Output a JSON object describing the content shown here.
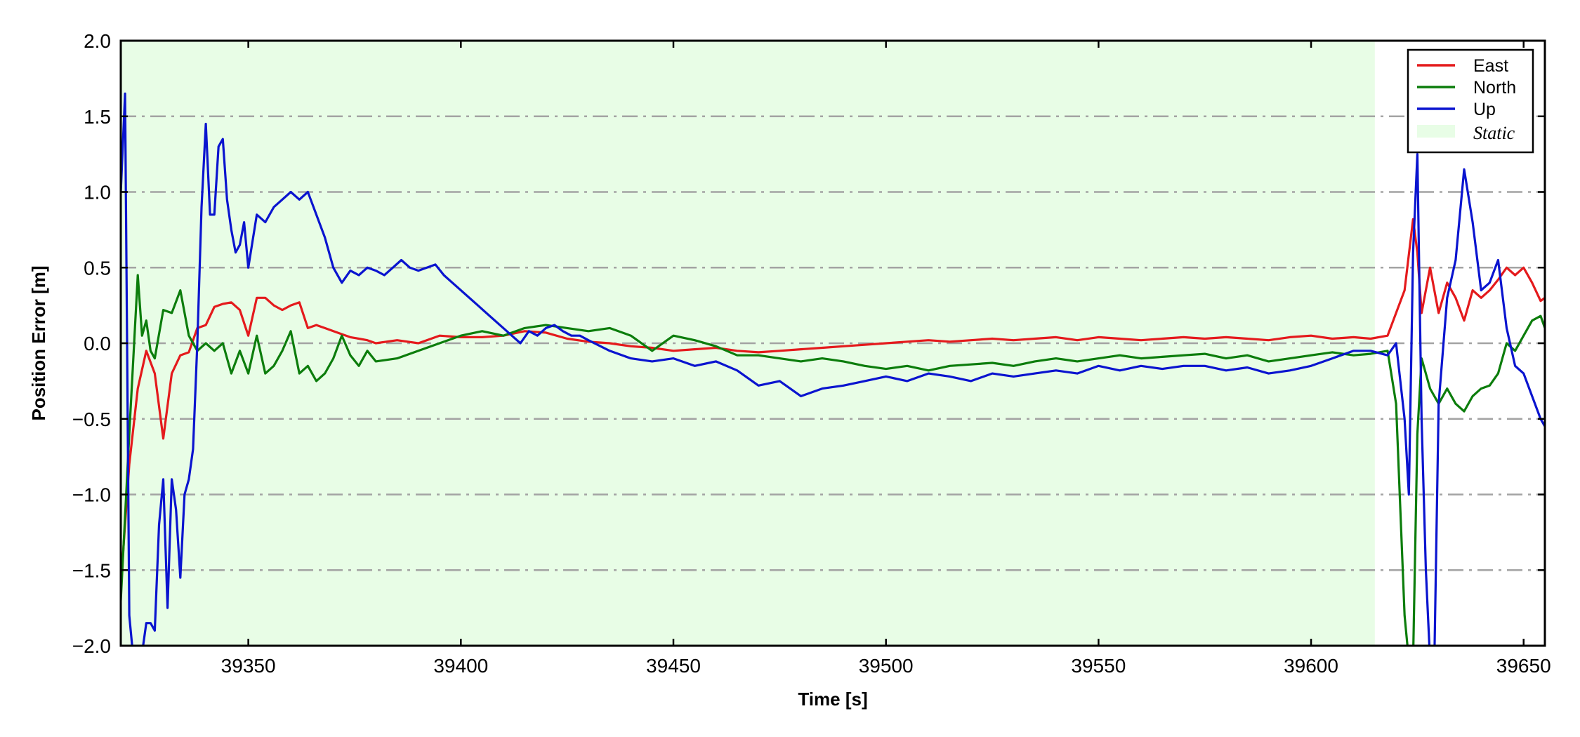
{
  "chart_data": {
    "type": "line",
    "title": "",
    "xlabel": "Time [s]",
    "ylabel": "Position Error [m]",
    "xlim": [
      39320,
      39655
    ],
    "ylim": [
      -2.0,
      2.0
    ],
    "xticks": [
      39350,
      39400,
      39450,
      39500,
      39550,
      39600,
      39650
    ],
    "yticks": [
      -2.0,
      -1.5,
      -1.0,
      -0.5,
      0.0,
      0.5,
      1.0,
      1.5,
      2.0
    ],
    "xtick_labels": [
      "39350",
      "39400",
      "39450",
      "39500",
      "39550",
      "39600",
      "39650"
    ],
    "ytick_labels": [
      "−2.0",
      "−1.5",
      "−1.0",
      "−0.5",
      "0.0",
      "0.5",
      "1.0",
      "1.5",
      "2.0"
    ],
    "grid": "horizontal dash-dot",
    "legend_position": "top-right",
    "static_region": {
      "label": "Static",
      "x_start": 39320,
      "x_end": 39615,
      "color": "#e8fde6"
    },
    "series": [
      {
        "name": "East",
        "color": "#e41a1c",
        "x": [
          39320,
          39322,
          39324,
          39326,
          39328,
          39330,
          39332,
          39334,
          39336,
          39338,
          39340,
          39342,
          39344,
          39346,
          39348,
          39350,
          39352,
          39354,
          39356,
          39358,
          39360,
          39362,
          39364,
          39366,
          39368,
          39370,
          39372,
          39374,
          39376,
          39378,
          39380,
          39385,
          39390,
          39395,
          39400,
          39405,
          39410,
          39415,
          39420,
          39425,
          39430,
          39435,
          39440,
          39445,
          39450,
          39455,
          39460,
          39465,
          39470,
          39475,
          39480,
          39485,
          39490,
          39495,
          39500,
          39505,
          39510,
          39515,
          39520,
          39525,
          39530,
          39535,
          39540,
          39545,
          39550,
          39555,
          39560,
          39565,
          39570,
          39575,
          39580,
          39585,
          39590,
          39595,
          39600,
          39605,
          39610,
          39614,
          39618,
          39622,
          39624,
          39625,
          39626,
          39628,
          39630,
          39632,
          39634,
          39636,
          39638,
          39640,
          39642,
          39644,
          39646,
          39648,
          39650,
          39652,
          39654,
          39655
        ],
        "y": [
          -1.6,
          -0.8,
          -0.3,
          -0.05,
          -0.2,
          -0.63,
          -0.2,
          -0.08,
          -0.06,
          0.1,
          0.12,
          0.24,
          0.26,
          0.27,
          0.22,
          0.05,
          0.3,
          0.3,
          0.25,
          0.22,
          0.25,
          0.27,
          0.1,
          0.12,
          0.1,
          0.08,
          0.06,
          0.04,
          0.03,
          0.02,
          0.0,
          0.02,
          0.0,
          0.05,
          0.04,
          0.04,
          0.05,
          0.08,
          0.07,
          0.03,
          0.01,
          0.0,
          -0.02,
          -0.03,
          -0.05,
          -0.04,
          -0.03,
          -0.05,
          -0.06,
          -0.05,
          -0.04,
          -0.03,
          -0.02,
          -0.01,
          0.0,
          0.01,
          0.02,
          0.01,
          0.02,
          0.03,
          0.02,
          0.03,
          0.04,
          0.02,
          0.04,
          0.03,
          0.02,
          0.03,
          0.04,
          0.03,
          0.04,
          0.03,
          0.02,
          0.04,
          0.05,
          0.03,
          0.04,
          0.03,
          0.05,
          0.35,
          0.82,
          0.6,
          0.2,
          0.5,
          0.2,
          0.4,
          0.3,
          0.15,
          0.35,
          0.3,
          0.35,
          0.42,
          0.5,
          0.45,
          0.5,
          0.4,
          0.28,
          0.3
        ]
      },
      {
        "name": "North",
        "color": "#0c7d0c",
        "x": [
          39320,
          39322,
          39324,
          39325,
          39326,
          39327,
          39328,
          39330,
          39332,
          39334,
          39336,
          39338,
          39340,
          39342,
          39344,
          39346,
          39348,
          39350,
          39352,
          39354,
          39356,
          39358,
          39360,
          39362,
          39364,
          39366,
          39368,
          39370,
          39372,
          39374,
          39376,
          39378,
          39380,
          39385,
          39390,
          39395,
          39400,
          39405,
          39410,
          39415,
          39420,
          39425,
          39430,
          39435,
          39440,
          39445,
          39450,
          39455,
          39460,
          39465,
          39470,
          39475,
          39480,
          39485,
          39490,
          39495,
          39500,
          39505,
          39510,
          39515,
          39520,
          39525,
          39530,
          39535,
          39540,
          39545,
          39550,
          39555,
          39560,
          39565,
          39570,
          39575,
          39580,
          39585,
          39590,
          39595,
          39600,
          39605,
          39610,
          39614,
          39618,
          39620,
          39622,
          39623,
          39624,
          39625,
          39626,
          39628,
          39630,
          39632,
          39634,
          39636,
          39638,
          39640,
          39642,
          39644,
          39646,
          39648,
          39650,
          39652,
          39654,
          39655
        ],
        "y": [
          -1.7,
          -0.6,
          0.45,
          0.05,
          0.15,
          -0.05,
          -0.1,
          0.22,
          0.2,
          0.35,
          0.05,
          -0.05,
          0.0,
          -0.05,
          0.0,
          -0.2,
          -0.05,
          -0.2,
          0.05,
          -0.2,
          -0.15,
          -0.05,
          0.08,
          -0.2,
          -0.15,
          -0.25,
          -0.2,
          -0.1,
          0.05,
          -0.08,
          -0.15,
          -0.05,
          -0.12,
          -0.1,
          -0.05,
          0.0,
          0.05,
          0.08,
          0.05,
          0.1,
          0.12,
          0.1,
          0.08,
          0.1,
          0.05,
          -0.05,
          0.05,
          0.02,
          -0.02,
          -0.08,
          -0.08,
          -0.1,
          -0.12,
          -0.1,
          -0.12,
          -0.15,
          -0.17,
          -0.15,
          -0.18,
          -0.15,
          -0.14,
          -0.13,
          -0.15,
          -0.12,
          -0.1,
          -0.12,
          -0.1,
          -0.08,
          -0.1,
          -0.09,
          -0.08,
          -0.07,
          -0.1,
          -0.08,
          -0.12,
          -0.1,
          -0.08,
          -0.06,
          -0.08,
          -0.07,
          -0.05,
          -0.4,
          -1.8,
          -2.1,
          -2.1,
          -0.6,
          -0.1,
          -0.3,
          -0.4,
          -0.3,
          -0.4,
          -0.45,
          -0.35,
          -0.3,
          -0.28,
          -0.2,
          0.0,
          -0.05,
          0.05,
          0.15,
          0.18,
          0.1
        ]
      },
      {
        "name": "Up",
        "color": "#0a14cf",
        "x": [
          39320,
          39321,
          39322,
          39323,
          39324,
          39325,
          39326,
          39327,
          39328,
          39329,
          39330,
          39331,
          39332,
          39333,
          39334,
          39335,
          39336,
          39337,
          39338,
          39339,
          39340,
          39341,
          39342,
          39343,
          39344,
          39345,
          39346,
          39347,
          39348,
          39349,
          39350,
          39352,
          39354,
          39356,
          39358,
          39360,
          39362,
          39364,
          39366,
          39368,
          39370,
          39372,
          39374,
          39376,
          39378,
          39380,
          39382,
          39384,
          39386,
          39388,
          39390,
          39392,
          39394,
          39396,
          39398,
          39400,
          39402,
          39404,
          39406,
          39408,
          39410,
          39412,
          39414,
          39416,
          39418,
          39420,
          39422,
          39424,
          39426,
          39428,
          39430,
          39435,
          39440,
          39445,
          39450,
          39455,
          39460,
          39465,
          39470,
          39475,
          39480,
          39485,
          39490,
          39495,
          39500,
          39505,
          39510,
          39515,
          39520,
          39525,
          39530,
          39535,
          39540,
          39545,
          39550,
          39555,
          39560,
          39565,
          39570,
          39575,
          39580,
          39585,
          39590,
          39595,
          39600,
          39605,
          39610,
          39614,
          39618,
          39620,
          39622,
          39623,
          39624,
          39625,
          39626,
          39627,
          39628,
          39629,
          39630,
          39632,
          39634,
          39636,
          39638,
          39640,
          39642,
          39644,
          39646,
          39648,
          39650,
          39652,
          39654,
          39655
        ],
        "y": [
          1.0,
          1.65,
          -1.8,
          -2.1,
          -2.1,
          -2.05,
          -1.85,
          -1.85,
          -1.9,
          -1.2,
          -0.9,
          -1.75,
          -0.9,
          -1.1,
          -1.55,
          -1.0,
          -0.9,
          -0.7,
          0.0,
          0.9,
          1.45,
          0.85,
          0.85,
          1.3,
          1.35,
          0.95,
          0.75,
          0.6,
          0.65,
          0.8,
          0.5,
          0.85,
          0.8,
          0.9,
          0.95,
          1.0,
          0.95,
          1.0,
          0.85,
          0.7,
          0.5,
          0.4,
          0.48,
          0.45,
          0.5,
          0.48,
          0.45,
          0.5,
          0.55,
          0.5,
          0.48,
          0.5,
          0.52,
          0.45,
          0.4,
          0.35,
          0.3,
          0.25,
          0.2,
          0.15,
          0.1,
          0.05,
          0.0,
          0.08,
          0.05,
          0.1,
          0.12,
          0.08,
          0.05,
          0.05,
          0.02,
          -0.05,
          -0.1,
          -0.12,
          -0.1,
          -0.15,
          -0.12,
          -0.18,
          -0.28,
          -0.25,
          -0.35,
          -0.3,
          -0.28,
          -0.25,
          -0.22,
          -0.25,
          -0.2,
          -0.22,
          -0.25,
          -0.2,
          -0.22,
          -0.2,
          -0.18,
          -0.2,
          -0.15,
          -0.18,
          -0.15,
          -0.17,
          -0.15,
          -0.15,
          -0.18,
          -0.16,
          -0.2,
          -0.18,
          -0.15,
          -0.1,
          -0.05,
          -0.05,
          -0.08,
          0.0,
          -0.5,
          -1.0,
          0.6,
          1.25,
          -0.5,
          -1.5,
          -2.1,
          -2.1,
          -0.4,
          0.3,
          0.55,
          1.15,
          0.8,
          0.35,
          0.4,
          0.55,
          0.1,
          -0.15,
          -0.2,
          -0.35,
          -0.5,
          -0.55
        ]
      }
    ]
  }
}
